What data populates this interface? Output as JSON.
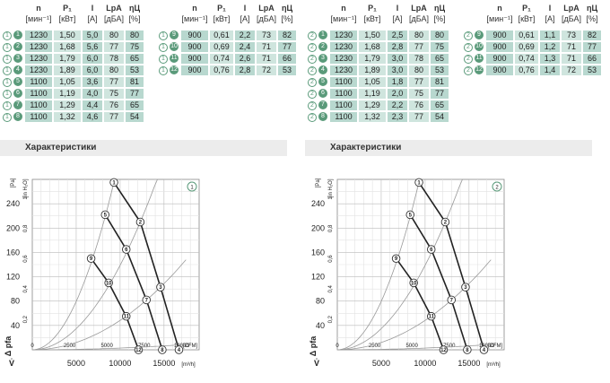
{
  "header": {
    "n": "n",
    "n_unit": "[мин⁻¹]",
    "p": "P₁",
    "p_unit": "[кВт]",
    "i": "I",
    "i_unit": "[A]",
    "lpa": "LpA",
    "lpa_unit": "[дБА]",
    "eta": "ηЦ",
    "eta_unit": "[%]"
  },
  "section_title": "Характеристики",
  "colors": {
    "accent": "#5a9a7a",
    "cell_dark": "#b8d8cf",
    "cell_light": "#cfe5de"
  },
  "panels": [
    {
      "badge": "1",
      "left_rows": [
        {
          "id": "1",
          "n": "1230",
          "p": "1,50",
          "i": "5,0",
          "lpa": "80",
          "eta": "80"
        },
        {
          "id": "2",
          "n": "1230",
          "p": "1,68",
          "i": "5,6",
          "lpa": "77",
          "eta": "75"
        },
        {
          "id": "3",
          "n": "1230",
          "p": "1,79",
          "i": "6,0",
          "lpa": "78",
          "eta": "65"
        },
        {
          "id": "4",
          "n": "1230",
          "p": "1,89",
          "i": "6,0",
          "lpa": "80",
          "eta": "53"
        },
        {
          "id": "5",
          "n": "1100",
          "p": "1,05",
          "i": "3,6",
          "lpa": "77",
          "eta": "81"
        },
        {
          "id": "6",
          "n": "1100",
          "p": "1,19",
          "i": "4,0",
          "lpa": "75",
          "eta": "77"
        },
        {
          "id": "7",
          "n": "1100",
          "p": "1,29",
          "i": "4,4",
          "lpa": "76",
          "eta": "65"
        },
        {
          "id": "8",
          "n": "1100",
          "p": "1,32",
          "i": "4,6",
          "lpa": "77",
          "eta": "54"
        }
      ],
      "right_rows": [
        {
          "id": "9",
          "n": "900",
          "p": "0,61",
          "i": "2,2",
          "lpa": "73",
          "eta": "82"
        },
        {
          "id": "10",
          "n": "900",
          "p": "0,69",
          "i": "2,4",
          "lpa": "71",
          "eta": "77"
        },
        {
          "id": "11",
          "n": "900",
          "p": "0,74",
          "i": "2,6",
          "lpa": "71",
          "eta": "66"
        },
        {
          "id": "12",
          "n": "900",
          "p": "0,76",
          "i": "2,8",
          "lpa": "72",
          "eta": "53"
        }
      ]
    },
    {
      "badge": "2",
      "left_rows": [
        {
          "id": "1",
          "n": "1230",
          "p": "1,50",
          "i": "2,5",
          "lpa": "80",
          "eta": "80"
        },
        {
          "id": "2",
          "n": "1230",
          "p": "1,68",
          "i": "2,8",
          "lpa": "77",
          "eta": "75"
        },
        {
          "id": "3",
          "n": "1230",
          "p": "1,79",
          "i": "3,0",
          "lpa": "78",
          "eta": "65"
        },
        {
          "id": "4",
          "n": "1230",
          "p": "1,89",
          "i": "3,0",
          "lpa": "80",
          "eta": "53"
        },
        {
          "id": "5",
          "n": "1100",
          "p": "1,05",
          "i": "1,8",
          "lpa": "77",
          "eta": "81"
        },
        {
          "id": "6",
          "n": "1100",
          "p": "1,19",
          "i": "2,0",
          "lpa": "75",
          "eta": "77"
        },
        {
          "id": "7",
          "n": "1100",
          "p": "1,29",
          "i": "2,2",
          "lpa": "76",
          "eta": "65"
        },
        {
          "id": "8",
          "n": "1100",
          "p": "1,32",
          "i": "2,3",
          "lpa": "77",
          "eta": "54"
        }
      ],
      "right_rows": [
        {
          "id": "9",
          "n": "900",
          "p": "0,61",
          "i": "1,1",
          "lpa": "73",
          "eta": "82"
        },
        {
          "id": "10",
          "n": "900",
          "p": "0,69",
          "i": "1,2",
          "lpa": "71",
          "eta": "77"
        },
        {
          "id": "11",
          "n": "900",
          "p": "0,74",
          "i": "1,3",
          "lpa": "71",
          "eta": "66"
        },
        {
          "id": "12",
          "n": "900",
          "p": "0,76",
          "i": "1,4",
          "lpa": "72",
          "eta": "53"
        }
      ]
    }
  ],
  "chart_data": [
    {
      "type": "line",
      "badge": "1",
      "xlabel": "V̇",
      "ylabel": "Δ pfa",
      "y_unit": "[Pa]",
      "x_unit_cfm": "[CFM]",
      "x_unit_m3h": "[m³/h]",
      "eff_axis_label": "[in H₂O]",
      "ylim": [
        0,
        280
      ],
      "xlim_m3h": [
        0,
        19000
      ],
      "y_ticks": [
        40,
        80,
        120,
        160,
        200,
        240
      ],
      "y_tick_labels": [
        "40",
        "80",
        "120",
        "160",
        "200",
        "240"
      ],
      "inh2o_ticks": [
        0.2,
        0.4,
        0.6,
        0.8,
        1
      ],
      "inh2o_tick_labels": [
        "0,2",
        "0,4",
        "0,6",
        "0,8",
        "1"
      ],
      "cfm_ticks": [
        0,
        2500,
        5000,
        7500,
        10000
      ],
      "cfm_tick_labels": [
        "0",
        "2500",
        "5000",
        "7500",
        "10000"
      ],
      "m3h_ticks": [
        5000,
        10000,
        15000
      ],
      "m3h_tick_labels": [
        "5000",
        "10000",
        "15000"
      ],
      "series": [
        {
          "name": "1230",
          "points": [
            {
              "id": "1",
              "x": 9300,
              "y": 275
            },
            {
              "id": "2",
              "x": 12300,
              "y": 210
            },
            {
              "id": "3",
              "x": 14600,
              "y": 103
            },
            {
              "id": "4",
              "x": 16700,
              "y": 0
            }
          ]
        },
        {
          "name": "1100",
          "points": [
            {
              "id": "5",
              "x": 8300,
              "y": 222
            },
            {
              "id": "6",
              "x": 10700,
              "y": 165
            },
            {
              "id": "7",
              "x": 13000,
              "y": 82
            },
            {
              "id": "8",
              "x": 14800,
              "y": 0
            }
          ]
        },
        {
          "name": "900",
          "points": [
            {
              "id": "9",
              "x": 6700,
              "y": 150
            },
            {
              "id": "10",
              "x": 8700,
              "y": 110
            },
            {
              "id": "11",
              "x": 10700,
              "y": 55
            },
            {
              "id": "12",
              "x": 12100,
              "y": 0
            }
          ]
        }
      ],
      "system_curves": [
        {
          "x": [
            0,
            9300,
            11000
          ],
          "y": [
            0,
            275,
            300
          ]
        },
        {
          "x": [
            0,
            12300,
            15000
          ],
          "y": [
            0,
            210,
            245
          ]
        },
        {
          "x": [
            0,
            14600,
            17500
          ],
          "y": [
            0,
            103,
            130
          ]
        },
        {
          "x": [
            0,
            16700,
            18000
          ],
          "y": [
            0,
            8,
            10
          ]
        }
      ]
    },
    {
      "type": "line",
      "badge": "2",
      "xlabel": "V̇",
      "ylabel": "Δ pfa",
      "y_unit": "[Pa]",
      "x_unit_cfm": "[CFM]",
      "x_unit_m3h": "[m³/h]",
      "eff_axis_label": "[in H₂O]",
      "ylim": [
        0,
        280
      ],
      "xlim_m3h": [
        0,
        19000
      ],
      "y_ticks": [
        40,
        80,
        120,
        160,
        200,
        240
      ],
      "y_tick_labels": [
        "40",
        "80",
        "120",
        "160",
        "200",
        "240"
      ],
      "inh2o_ticks": [
        0.2,
        0.4,
        0.6,
        0.8,
        1
      ],
      "inh2o_tick_labels": [
        "0,2",
        "0,4",
        "0,6",
        "0,8",
        "1"
      ],
      "cfm_ticks": [
        0,
        2500,
        5000,
        7500,
        10000
      ],
      "cfm_tick_labels": [
        "0",
        "2500",
        "5000",
        "7500",
        "10000"
      ],
      "m3h_ticks": [
        5000,
        10000,
        15000
      ],
      "m3h_tick_labels": [
        "5000",
        "10000",
        "15000"
      ],
      "series": [
        {
          "name": "1230",
          "points": [
            {
              "id": "1",
              "x": 9300,
              "y": 275
            },
            {
              "id": "2",
              "x": 12300,
              "y": 210
            },
            {
              "id": "3",
              "x": 14600,
              "y": 103
            },
            {
              "id": "4",
              "x": 16700,
              "y": 0
            }
          ]
        },
        {
          "name": "1100",
          "points": [
            {
              "id": "5",
              "x": 8300,
              "y": 222
            },
            {
              "id": "6",
              "x": 10700,
              "y": 165
            },
            {
              "id": "7",
              "x": 13000,
              "y": 82
            },
            {
              "id": "8",
              "x": 14800,
              "y": 0
            }
          ]
        },
        {
          "name": "900",
          "points": [
            {
              "id": "9",
              "x": 6700,
              "y": 150
            },
            {
              "id": "10",
              "x": 8700,
              "y": 110
            },
            {
              "id": "11",
              "x": 10700,
              "y": 55
            },
            {
              "id": "12",
              "x": 12100,
              "y": 0
            }
          ]
        }
      ],
      "system_curves": [
        {
          "x": [
            0,
            9300,
            11000
          ],
          "y": [
            0,
            275,
            300
          ]
        },
        {
          "x": [
            0,
            12300,
            15000
          ],
          "y": [
            0,
            210,
            245
          ]
        },
        {
          "x": [
            0,
            14600,
            17500
          ],
          "y": [
            0,
            103,
            130
          ]
        },
        {
          "x": [
            0,
            16700,
            18000
          ],
          "y": [
            0,
            8,
            10
          ]
        }
      ]
    }
  ]
}
